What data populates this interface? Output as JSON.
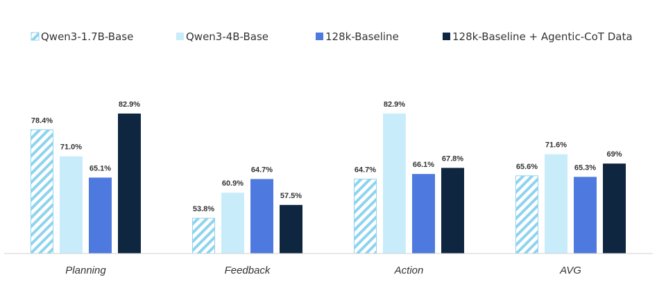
{
  "chart_data": {
    "type": "bar",
    "title": "",
    "xlabel": "",
    "ylabel": "",
    "ylim": [
      44,
      85
    ],
    "grid": false,
    "legend_position": "top",
    "categories": [
      "Planning",
      "Feedback",
      "Action",
      "AVG"
    ],
    "series": [
      {
        "name": "Qwen3-1.7B-Base",
        "values": [
          78.4,
          53.8,
          64.7,
          65.6
        ],
        "labels": [
          "78.4%",
          "53.8%",
          "64.7%",
          "65.6%"
        ],
        "color": "#8ed3ef",
        "fill_color": "#ffffff",
        "pattern": "diagonal-hatch"
      },
      {
        "name": "Qwen3-4B-Base",
        "values": [
          71.0,
          60.9,
          82.9,
          71.6
        ],
        "labels": [
          "71.0%",
          "60.9%",
          "82.9%",
          "71.6%"
        ],
        "color": "#c9ecfb",
        "pattern": "solid"
      },
      {
        "name": "128k-Baseline",
        "values": [
          65.1,
          64.7,
          66.1,
          65.3
        ],
        "labels": [
          "65.1%",
          "64.7%",
          "66.1%",
          "65.3%"
        ],
        "color": "#4e79df",
        "pattern": "solid"
      },
      {
        "name": "128k-Baseline + Agentic-CoT Data",
        "values": [
          82.9,
          57.5,
          67.8,
          69.0
        ],
        "labels": [
          "82.9%",
          "57.5%",
          "67.8%",
          "69%"
        ],
        "color": "#0f2641",
        "pattern": "solid"
      }
    ]
  }
}
